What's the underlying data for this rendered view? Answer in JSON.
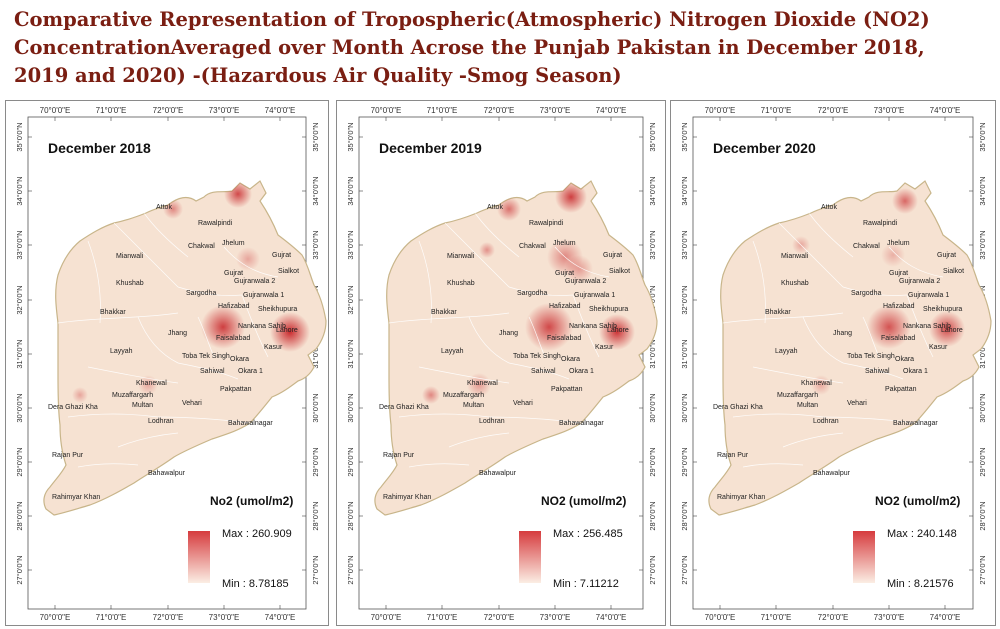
{
  "title": {
    "line1": "Comparative Representation of Tropospheric(Atmospheric) Nitrogen Dioxide (NO2)",
    "line2": "ConcentrationAveraged over Month Acrose the Punjab Pakistan in December 2018,",
    "line3": "2019 and 2020) -(Hazardous Air Quality -Smog Season)"
  },
  "x_ticks": [
    "70°0'0\"E",
    "71°0'0\"E",
    "72°0'0\"E",
    "73°0'0\"E",
    "74°0'0\"E"
  ],
  "y_ticks": [
    "35°0'0\"N",
    "34°0'0\"N",
    "33°0'0\"N",
    "32°0'0\"N",
    "31°0'0\"N",
    "30°0'0\"N",
    "29°0'0\"N",
    "28°0'0\"N",
    "27°0'0\"N"
  ],
  "cities": [
    "Attok",
    "Rawalpindi",
    "Chakwal",
    "Jhelum",
    "Gujrat",
    "Mianwali",
    "Sialkot",
    "Gujrat",
    "Gujranwala 2",
    "Khushab",
    "Sargodha",
    "Gujranwala 1",
    "Hafizabad",
    "Sheikhupura",
    "Bhakkar",
    "Nankana Sahib",
    "Lahore",
    "Jhang",
    "Faisalabad",
    "Kasur",
    "Layyah",
    "Toba Tek Singh",
    "Sahiwal",
    "Okara",
    "Okara 1",
    "Khanewal",
    "Pakpattan",
    "Muzaffargarh",
    "Multan",
    "Vehari",
    "Dera Ghazi Kha",
    "Lodhran",
    "Bahawalnagar",
    "Rajan Pur",
    "Bahawalpur",
    "Rahimyar Khan"
  ],
  "panels": [
    {
      "heading": "December 2018",
      "legend_title": "No2 (umol/m2)",
      "max_label": "Max : 260.909",
      "min_label": "Min : 8.78185",
      "max": 260.909,
      "min": 8.78185
    },
    {
      "heading": "December 2019",
      "legend_title": "NO2 (umol/m2)",
      "max_label": "Max : 256.485",
      "min_label": "Min : 7.11212",
      "max": 256.485,
      "min": 7.11212
    },
    {
      "heading": "December 2020",
      "legend_title": "NO2 (umol/m2)",
      "max_label": "Max : 240.148",
      "min_label": "Min : 8.21576",
      "max": 240.148,
      "min": 8.21576
    }
  ],
  "colors": {
    "title": "#7a1e12",
    "fill_light": "#f6e2d2",
    "fill_high": "#c4161c",
    "border": "#c8b58a"
  }
}
